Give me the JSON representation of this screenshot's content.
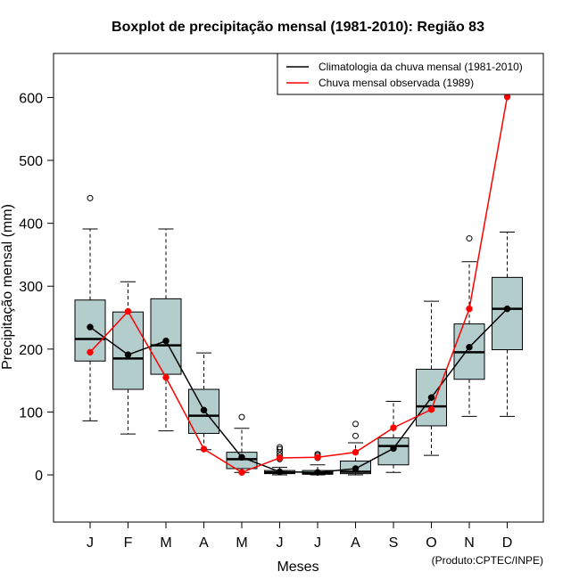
{
  "chart_data": {
    "type": "boxplot",
    "title": "Boxplot de precipitação mensal (1981-2010): Região 83",
    "xlabel": "Meses",
    "ylabel": "Precipitação mensal (mm)",
    "ylim": [
      -75,
      670
    ],
    "yticks": [
      0,
      100,
      200,
      300,
      400,
      500,
      600
    ],
    "categories": [
      "J",
      "F",
      "M",
      "A",
      "M",
      "J",
      "J",
      "A",
      "S",
      "O",
      "N",
      "D"
    ],
    "boxes": [
      {
        "whisker_low": 86,
        "q1": 181,
        "median": 216,
        "q3": 278,
        "whisker_high": 391,
        "outliers": [
          440
        ]
      },
      {
        "whisker_low": 65,
        "q1": 136,
        "median": 185,
        "q3": 259,
        "whisker_high": 307,
        "outliers": []
      },
      {
        "whisker_low": 70,
        "q1": 160,
        "median": 206,
        "q3": 280,
        "whisker_high": 391,
        "outliers": []
      },
      {
        "whisker_low": 40,
        "q1": 66,
        "median": 94,
        "q3": 136,
        "whisker_high": 194,
        "outliers": []
      },
      {
        "whisker_low": 4,
        "q1": 10,
        "median": 25,
        "q3": 36,
        "whisker_high": 74,
        "outliers": [
          92
        ]
      },
      {
        "whisker_low": 0,
        "q1": 2,
        "median": 4,
        "q3": 7,
        "whisker_high": 12,
        "outliers": [
          25,
          31,
          36,
          41,
          44
        ]
      },
      {
        "whisker_low": 0,
        "q1": 1,
        "median": 3,
        "q3": 7,
        "whisker_high": 16,
        "outliers": [
          27,
          31,
          33
        ]
      },
      {
        "whisker_low": 0,
        "q1": 2,
        "median": 5,
        "q3": 22,
        "whisker_high": 51,
        "outliers": [
          62,
          81
        ]
      },
      {
        "whisker_low": 4,
        "q1": 16,
        "median": 46,
        "q3": 59,
        "whisker_high": 117,
        "outliers": []
      },
      {
        "whisker_low": 31,
        "q1": 78,
        "median": 109,
        "q3": 168,
        "whisker_high": 276,
        "outliers": []
      },
      {
        "whisker_low": 93,
        "q1": 152,
        "median": 195,
        "q3": 240,
        "whisker_high": 339,
        "outliers": [
          376
        ]
      },
      {
        "whisker_low": 93,
        "q1": 199,
        "median": 264,
        "q3": 314,
        "whisker_high": 386,
        "outliers": []
      }
    ],
    "series": [
      {
        "name": "Climatologia da chuva mensal (1981-2010)",
        "color": "#000000",
        "values": [
          235,
          191,
          213,
          103,
          28,
          5,
          4,
          10,
          42,
          123,
          203,
          264
        ]
      },
      {
        "name": "Chuva mensal observada (1989)",
        "color": "#ff0000",
        "values": [
          195,
          260,
          155,
          41,
          4,
          27,
          28,
          36,
          75,
          104,
          264,
          601
        ]
      }
    ],
    "box_fill": "#b3cccc",
    "legend_position": "top-right",
    "credit": "(Produto:CPTEC/INPE)"
  }
}
